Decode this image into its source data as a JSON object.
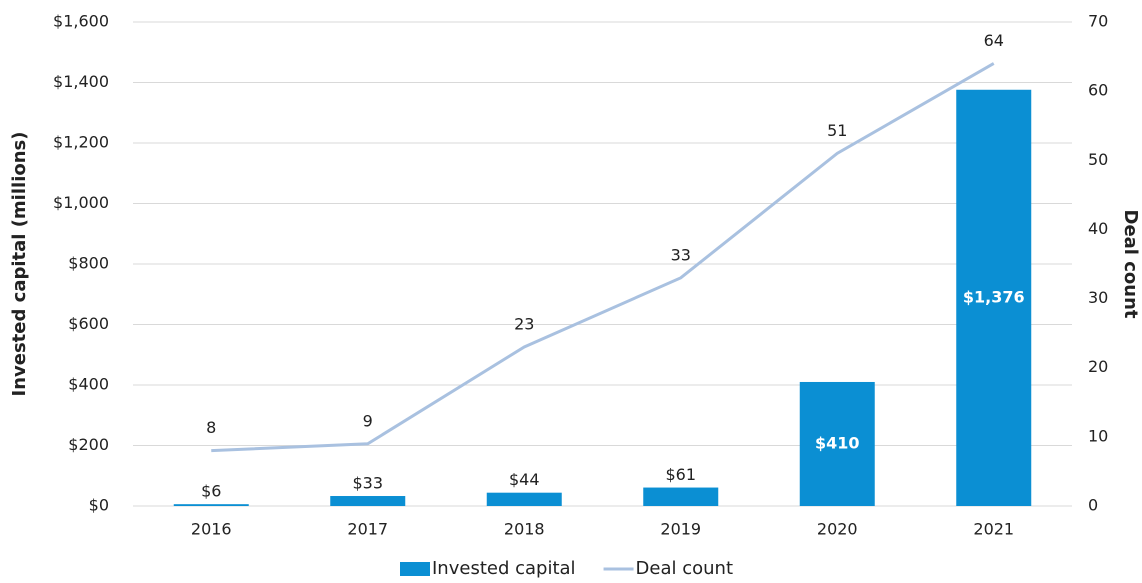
{
  "chart_data": {
    "type": "bar",
    "categories": [
      "2016",
      "2017",
      "2018",
      "2019",
      "2020",
      "2021"
    ],
    "series": [
      {
        "name": "Invested capital",
        "type": "bar",
        "color": "#0b8fd3",
        "values": [
          6,
          33,
          44,
          61,
          410,
          1376
        ],
        "value_labels": [
          "$6",
          "$33",
          "$44",
          "$61",
          "$410",
          "$1,376"
        ]
      },
      {
        "name": "Deal count",
        "type": "line",
        "axis": "y2",
        "color": "#a9c1e0",
        "values": [
          8,
          9,
          23,
          33,
          51,
          64
        ]
      }
    ],
    "ylabel": "Invested capital (millions)",
    "y2label": "Deal count",
    "ylim": [
      0,
      1600
    ],
    "yticks": [
      {
        "value": 0,
        "label": "$0"
      },
      {
        "value": 200,
        "label": "$200"
      },
      {
        "value": 400,
        "label": "$400"
      },
      {
        "value": 600,
        "label": "$600"
      },
      {
        "value": 800,
        "label": "$800"
      },
      {
        "value": 1000,
        "label": "$1,000"
      },
      {
        "value": 1200,
        "label": "$1,200"
      },
      {
        "value": 1400,
        "label": "$1,400"
      },
      {
        "value": 1600,
        "label": "$1,600"
      }
    ],
    "y2lim": [
      0,
      70
    ],
    "y2ticks": [
      0,
      10,
      20,
      30,
      40,
      50,
      60,
      70
    ],
    "grid": true,
    "legend": "bottom"
  }
}
